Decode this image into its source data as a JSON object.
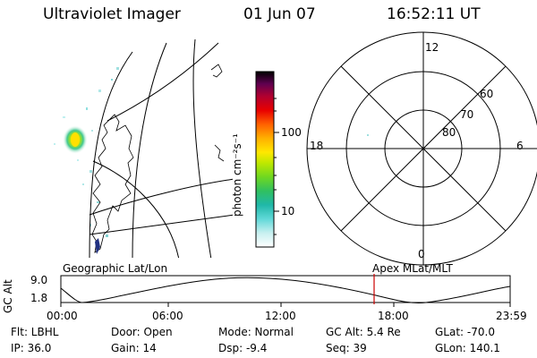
{
  "header": {
    "instrument": "Ultraviolet Imager",
    "date": "01 Jun 07",
    "time": "16:52:11 UT"
  },
  "colorbar": {
    "unit_label": "photon cm⁻²s⁻¹",
    "tick_100": "100",
    "tick_10": "10",
    "colors": [
      "#ffffff",
      "#c8f0f0",
      "#80e0e0",
      "#30c8c8",
      "#20b0a0",
      "#30c060",
      "#60d020",
      "#a0e000",
      "#e0f000",
      "#ffe000",
      "#ffb000",
      "#ff7000",
      "#ff3000",
      "#e00000",
      "#b00030",
      "#800050",
      "#400040",
      "#000000"
    ]
  },
  "polar": {
    "mlt_top": "12",
    "mlt_bottom": "0",
    "mlt_left": "18",
    "mlt_right": "6",
    "lat_60": "60",
    "lat_70": "70",
    "lat_80": "80"
  },
  "map_labels": {
    "left": "Geographic Lat/Lon",
    "right": "Apex  MLat/MLT"
  },
  "timeline": {
    "y_axis_label": "GC Alt",
    "y_max": "9.0",
    "y_min": "1.8",
    "x_ticks": [
      "00:00",
      "06:00",
      "12:00",
      "18:00",
      "23:59"
    ],
    "current_time_color": "#cc0000"
  },
  "footer": {
    "flt": "Flt: LBHL",
    "door": "Door: Open",
    "mode": "Mode: Normal",
    "gc_alt": "GC Alt: 5.4 Re",
    "glat": "GLat: -70.0",
    "ip": "IP: 36.0",
    "gain": "Gain: 14",
    "dsp": "Dsp:   -9.4",
    "seq": "Seq: 39",
    "glon": "GLon: 140.1"
  }
}
